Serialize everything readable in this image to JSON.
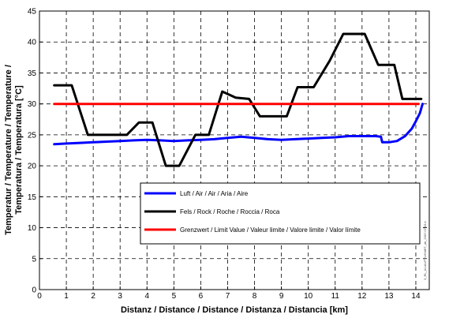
{
  "chart_data": {
    "type": "line",
    "xlabel": "Distanz / Distance / Distance / Distanza / Distancia [km]",
    "ylabel_lines": [
      "Temperatur / Temperature / Temperature /",
      "Temperatura / Temperatura [°C]"
    ],
    "xlim": [
      0,
      14.5
    ],
    "ylim": [
      0,
      45
    ],
    "x_ticks": [
      0,
      1,
      2,
      3,
      4,
      5,
      6,
      7,
      8,
      9,
      10,
      11,
      12,
      13,
      14
    ],
    "y_ticks": [
      0,
      5,
      10,
      15,
      20,
      25,
      30,
      35,
      40,
      45
    ],
    "grid": true,
    "grid_style": "dashed",
    "legend_position": "lower-right",
    "series": [
      {
        "name": "Luft / Air / Air / Aria / Aire",
        "color": "#0000ff",
        "x": [
          0.55,
          1.0,
          1.5,
          2.0,
          2.5,
          3.0,
          3.5,
          4.0,
          4.5,
          5.0,
          5.5,
          6.0,
          6.5,
          7.0,
          7.5,
          8.0,
          8.5,
          9.0,
          9.5,
          10.0,
          10.5,
          11.0,
          11.5,
          12.0,
          12.5,
          12.7,
          12.75,
          13.0,
          13.3,
          13.6,
          13.85,
          14.0,
          14.15,
          14.25
        ],
        "y": [
          23.5,
          23.6,
          23.7,
          23.8,
          23.9,
          24.0,
          24.1,
          24.2,
          24.1,
          24.0,
          24.1,
          24.2,
          24.3,
          24.5,
          24.7,
          24.5,
          24.3,
          24.2,
          24.3,
          24.4,
          24.5,
          24.6,
          24.8,
          24.8,
          24.8,
          24.7,
          23.8,
          23.8,
          24.0,
          24.8,
          26.0,
          27.2,
          28.5,
          30.0
        ]
      },
      {
        "name": "Fels / Rock / Roche / Roccia / Roca",
        "color": "#000000",
        "x": [
          0.55,
          1.2,
          1.8,
          2.3,
          2.9,
          3.25,
          3.7,
          4.2,
          4.7,
          5.2,
          5.8,
          6.3,
          6.8,
          7.3,
          7.8,
          8.2,
          8.7,
          9.2,
          9.6,
          10.2,
          10.8,
          11.3,
          11.6,
          12.1,
          12.6,
          13.0,
          13.2,
          13.5,
          13.8,
          14.2
        ],
        "y": [
          33.0,
          33.0,
          25.0,
          25.0,
          25.0,
          25.0,
          27.0,
          27.0,
          20.0,
          20.0,
          25.0,
          25.0,
          32.0,
          31.0,
          30.8,
          28.0,
          28.0,
          28.0,
          32.7,
          32.7,
          37.0,
          41.3,
          41.3,
          41.3,
          36.3,
          36.3,
          36.3,
          30.8,
          30.8,
          30.8
        ]
      },
      {
        "name": "Grenzwert / Limit Value / Valeur limite / Valore limite / Valor límite",
        "color": "#ff0000",
        "x": [
          0.55,
          14.1
        ],
        "y": [
          30,
          30
        ]
      }
    ],
    "side_id_text": "3_RL_AL\\AUFT\\VKM8T_ak_2007.07.03.b"
  }
}
